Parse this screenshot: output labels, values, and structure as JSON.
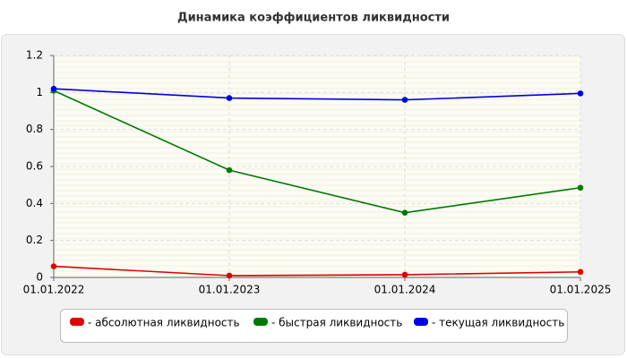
{
  "chart_data": {
    "type": "line",
    "title": "Динамика коэффициентов ликвидности",
    "categories": [
      "01.01.2022",
      "01.01.2023",
      "01.01.2024",
      "01.01.2025"
    ],
    "series": [
      {
        "name": "- абсолютная ликвидность",
        "color": "#e00000",
        "values": [
          0.06,
          0.01,
          0.015,
          0.03
        ]
      },
      {
        "name": "- быстрая ликвидность",
        "color": "#007800",
        "values": [
          1.01,
          0.58,
          0.35,
          0.485
        ]
      },
      {
        "name": "- текущая ликвидность",
        "color": "#0000e6",
        "values": [
          1.02,
          0.97,
          0.96,
          0.995
        ]
      }
    ],
    "ylim": [
      0,
      1.2
    ],
    "yticks": [
      0,
      0.2,
      0.4,
      0.6,
      0.8,
      1,
      1.2
    ],
    "grid": true
  }
}
